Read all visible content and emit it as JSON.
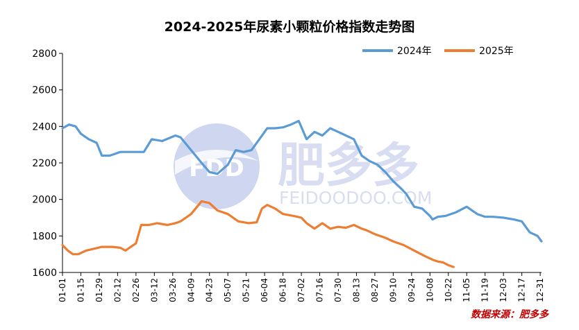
{
  "chart_data": {
    "type": "line",
    "title": "2024-2025年尿素小颗粒价格指数走势图",
    "xlabel": "",
    "ylabel": "",
    "ylim": [
      1600,
      2800
    ],
    "yticks": [
      1600,
      1800,
      2000,
      2200,
      2400,
      2600,
      2800
    ],
    "categories": [
      "01-01",
      "01-15",
      "01-29",
      "02-12",
      "02-26",
      "03-12",
      "03-26",
      "04-09",
      "04-23",
      "05-07",
      "05-21",
      "06-04",
      "06-18",
      "07-02",
      "07-16",
      "07-30",
      "08-13",
      "08-27",
      "09-10",
      "09-24",
      "10-08",
      "10-22",
      "11-05",
      "11-19",
      "12-03",
      "12-17",
      "12-31"
    ],
    "x_day_range": [
      0,
      365
    ],
    "series": [
      {
        "name": "2024年",
        "color": "#5b9bd5",
        "x": [
          0,
          5,
          10,
          14,
          20,
          26,
          30,
          36,
          44,
          50,
          62,
          68,
          76,
          86,
          90,
          98,
          106,
          112,
          118,
          126,
          132,
          138,
          144,
          150,
          156,
          162,
          168,
          174,
          180,
          186,
          192,
          198,
          204,
          210,
          216,
          222,
          228,
          234,
          240,
          246,
          252,
          258,
          262,
          268,
          274,
          280,
          282,
          286,
          292,
          300,
          308,
          316,
          322,
          328,
          336,
          344,
          350,
          356,
          362,
          365
        ],
        "values": [
          2390,
          2410,
          2400,
          2360,
          2330,
          2310,
          2240,
          2240,
          2260,
          2260,
          2260,
          2330,
          2320,
          2350,
          2340,
          2270,
          2200,
          2150,
          2140,
          2190,
          2270,
          2260,
          2270,
          2330,
          2390,
          2390,
          2395,
          2410,
          2430,
          2330,
          2370,
          2350,
          2390,
          2370,
          2350,
          2330,
          2240,
          2210,
          2190,
          2150,
          2100,
          2060,
          2030,
          1960,
          1950,
          1910,
          1890,
          1905,
          1910,
          1930,
          1960,
          1920,
          1905,
          1905,
          1900,
          1890,
          1880,
          1820,
          1800,
          1770
        ]
      },
      {
        "name": "2025年",
        "color": "#ed7d31",
        "x": [
          0,
          4,
          8,
          12,
          18,
          24,
          30,
          38,
          44,
          48,
          52,
          56,
          60,
          66,
          72,
          80,
          86,
          90,
          98,
          106,
          112,
          118,
          126,
          134,
          142,
          148,
          152,
          156,
          162,
          168,
          176,
          182,
          186,
          192,
          198,
          204,
          210,
          216,
          222,
          228,
          232,
          238,
          246,
          252,
          260,
          268,
          276,
          282,
          286,
          290,
          294,
          298
        ],
        "values": [
          1750,
          1720,
          1700,
          1700,
          1720,
          1730,
          1740,
          1740,
          1735,
          1720,
          1740,
          1760,
          1860,
          1860,
          1870,
          1860,
          1870,
          1880,
          1920,
          1990,
          1980,
          1940,
          1920,
          1880,
          1870,
          1875,
          1950,
          1970,
          1950,
          1920,
          1910,
          1900,
          1870,
          1840,
          1870,
          1840,
          1850,
          1845,
          1860,
          1840,
          1830,
          1810,
          1790,
          1770,
          1750,
          1720,
          1690,
          1670,
          1660,
          1655,
          1640,
          1630
        ]
      }
    ],
    "legend_position": "top-right",
    "source": "数据来源：肥多多"
  },
  "watermark": {
    "logo_text": "FDD",
    "brand_cn": "肥多多",
    "brand_en": "FEIDOODOO.COM"
  }
}
